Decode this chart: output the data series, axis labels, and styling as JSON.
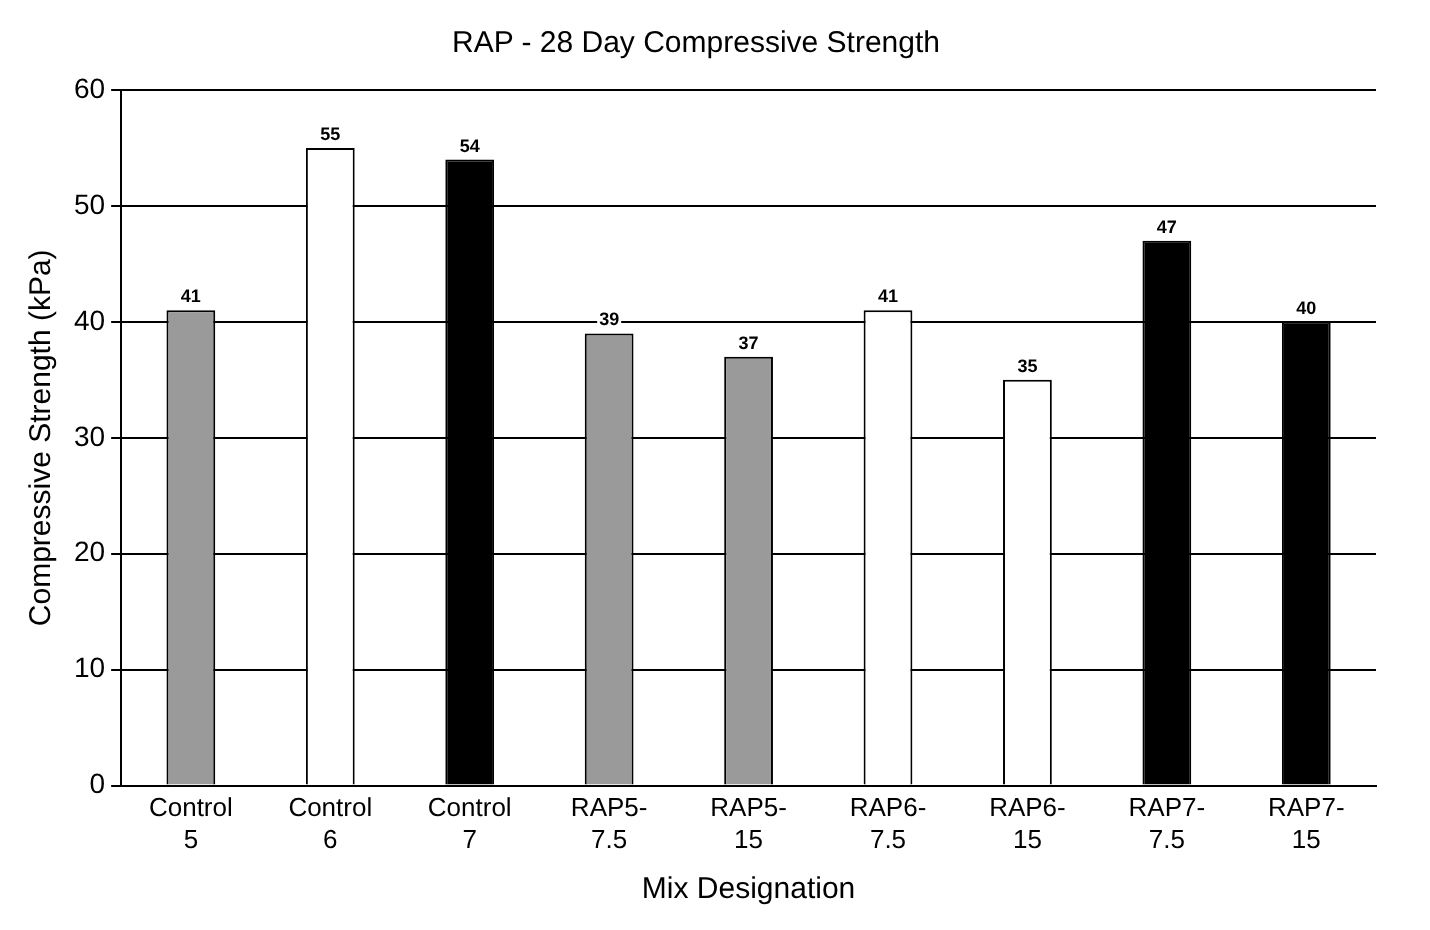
{
  "chart_data": {
    "type": "bar",
    "title": "RAP - 28 Day Compressive Strength",
    "xlabel": "Mix Designation",
    "ylabel": "Compressive Strength (kPa)",
    "categories": [
      "Control 5",
      "Control 6",
      "Control 7",
      "RAP5-7.5",
      "RAP5-15",
      "RAP6-7.5",
      "RAP6-15",
      "RAP7-7.5",
      "RAP7-15"
    ],
    "values": [
      41,
      55,
      54,
      39,
      37,
      41,
      35,
      47,
      40
    ],
    "colors": [
      "#9a9a9a",
      "#ffffff",
      "#000000",
      "#9a9a9a",
      "#9a9a9a",
      "#ffffff",
      "#ffffff",
      "#000000",
      "#000000"
    ],
    "ylim": [
      0,
      60
    ],
    "yticks": [
      0,
      10,
      20,
      30,
      40,
      50,
      60
    ],
    "grid": "y",
    "legend": false,
    "data_labels": true
  }
}
